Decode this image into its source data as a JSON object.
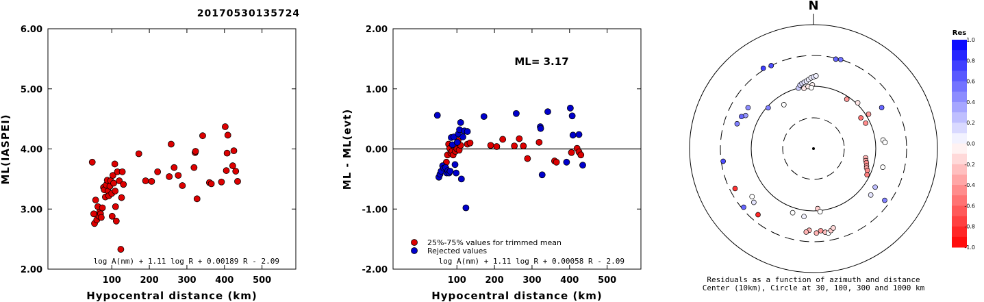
{
  "title": "20170530135724",
  "chart_data": [
    {
      "type": "scatter",
      "ylabel": "ML(IASPEI)",
      "xlabel": "Hypocentral distance (km)",
      "xlim": [
        -70,
        590
      ],
      "ylim": [
        2.0,
        6.0
      ],
      "x_ticks": [
        "100",
        "200",
        "300",
        "400",
        "500"
      ],
      "y_ticks": [
        "2.00",
        "3.00",
        "4.00",
        "5.00",
        "6.00"
      ],
      "formula": "log A(nm) + 1.11 log R + 0.00189 R - 2.09",
      "series": [
        {
          "color": "#dd0000",
          "points": [
            [
              48,
              3.78
            ],
            [
              52,
              2.92
            ],
            [
              54,
              2.76
            ],
            [
              57,
              3.15
            ],
            [
              60,
              2.82
            ],
            [
              63,
              3.04
            ],
            [
              66,
              2.88
            ],
            [
              68,
              2.95
            ],
            [
              70,
              2.92
            ],
            [
              72,
              2.86
            ],
            [
              75,
              3.02
            ],
            [
              78,
              3.36
            ],
            [
              80,
              3.32
            ],
            [
              83,
              3.2
            ],
            [
              85,
              3.4
            ],
            [
              88,
              3.48
            ],
            [
              90,
              3.3
            ],
            [
              92,
              3.22
            ],
            [
              95,
              3.38
            ],
            [
              97,
              3.47
            ],
            [
              100,
              3.26
            ],
            [
              101,
              2.88
            ],
            [
              103,
              3.56
            ],
            [
              105,
              3.43
            ],
            [
              108,
              3.75
            ],
            [
              109,
              3.3
            ],
            [
              110,
              3.04
            ],
            [
              112,
              2.8
            ],
            [
              115,
              3.62
            ],
            [
              120,
              3.47
            ],
            [
              124,
              2.33
            ],
            [
              126,
              3.19
            ],
            [
              128,
              3.62
            ],
            [
              131,
              3.41
            ],
            [
              172,
              3.92
            ],
            [
              190,
              3.47
            ],
            [
              206,
              3.46
            ],
            [
              222,
              3.62
            ],
            [
              253,
              3.54
            ],
            [
              258,
              4.08
            ],
            [
              266,
              3.69
            ],
            [
              277,
              3.56
            ],
            [
              288,
              3.39
            ],
            [
              319,
              3.69
            ],
            [
              322,
              3.94
            ],
            [
              323,
              3.96
            ],
            [
              327,
              3.17
            ],
            [
              342,
              4.22
            ],
            [
              360,
              3.44
            ],
            [
              365,
              3.42
            ],
            [
              392,
              3.45
            ],
            [
              402,
              4.37
            ],
            [
              405,
              3.64
            ],
            [
              407,
              3.93
            ],
            [
              409,
              4.23
            ],
            [
              422,
              3.72
            ],
            [
              425,
              3.97
            ],
            [
              430,
              3.63
            ],
            [
              435,
              3.46
            ]
          ]
        }
      ]
    },
    {
      "type": "scatter",
      "ylabel": "ML - ML(evt)",
      "xlabel": "Hypocentral distance (km)",
      "xlim": [
        -70,
        590
      ],
      "ylim": [
        -2.0,
        2.0
      ],
      "x_ticks": [
        "100",
        "200",
        "300",
        "400",
        "500"
      ],
      "y_ticks": [
        "-2.00",
        "-1.00",
        "0.00",
        "1.00",
        "2.00"
      ],
      "ml_label": "ML= 3.17",
      "formula": "log A(nm) + 1.11 log R + 0.00058 R - 2.09",
      "legend": [
        "25%-75% values for trimmed mean",
        "Rejected values"
      ],
      "series": [
        {
          "name": "25%-75% values for trimmed mean",
          "color": "#dd0000",
          "points": [
            [
              68,
              -0.31
            ],
            [
              72,
              -0.22
            ],
            [
              75,
              -0.1
            ],
            [
              78,
              0.08
            ],
            [
              81,
              0.01
            ],
            [
              84,
              -0.07
            ],
            [
              87,
              -0.04
            ],
            [
              90,
              -0.1
            ],
            [
              93,
              0.04
            ],
            [
              96,
              -0.04
            ],
            [
              100,
              0.0
            ],
            [
              103,
              0.14
            ],
            [
              106,
              -0.02
            ],
            [
              110,
              0.06
            ],
            [
              128,
              0.08
            ],
            [
              135,
              0.1
            ],
            [
              190,
              0.06
            ],
            [
              206,
              0.04
            ],
            [
              222,
              0.16
            ],
            [
              253,
              0.05
            ],
            [
              266,
              0.17
            ],
            [
              277,
              0.05
            ],
            [
              288,
              -0.16
            ],
            [
              319,
              0.11
            ],
            [
              360,
              -0.2
            ],
            [
              365,
              -0.22
            ],
            [
              405,
              -0.06
            ],
            [
              420,
              0.01
            ],
            [
              425,
              -0.05
            ],
            [
              430,
              -0.1
            ]
          ]
        },
        {
          "name": "Rejected values",
          "color": "#0000cc",
          "points": [
            [
              48,
              0.56
            ],
            [
              52,
              -0.47
            ],
            [
              55,
              -0.42
            ],
            [
              58,
              -0.37
            ],
            [
              62,
              -0.28
            ],
            [
              65,
              -0.32
            ],
            [
              70,
              -0.31
            ],
            [
              73,
              -0.4
            ],
            [
              76,
              -0.36
            ],
            [
              79,
              -0.4
            ],
            [
              82,
              -0.37
            ],
            [
              85,
              0.19
            ],
            [
              88,
              0.07
            ],
            [
              92,
              0.2
            ],
            [
              95,
              -0.26
            ],
            [
              98,
              -0.4
            ],
            [
              101,
              0.11
            ],
            [
              104,
              0.25
            ],
            [
              107,
              0.32
            ],
            [
              110,
              0.44
            ],
            [
              112,
              -0.5
            ],
            [
              116,
              0.2
            ],
            [
              120,
              0.3
            ],
            [
              124,
              -0.98
            ],
            [
              128,
              0.29
            ],
            [
              172,
              0.54
            ],
            [
              258,
              0.59
            ],
            [
              322,
              0.37
            ],
            [
              323,
              0.34
            ],
            [
              327,
              -0.43
            ],
            [
              342,
              0.62
            ],
            [
              392,
              -0.22
            ],
            [
              402,
              0.68
            ],
            [
              407,
              0.55
            ],
            [
              409,
              0.23
            ],
            [
              425,
              0.24
            ],
            [
              435,
              -0.27
            ]
          ]
        }
      ]
    }
  ],
  "polar": {
    "north_label": "N",
    "caption_line1": "Residuals as a function of azimuth and distance",
    "caption_line2": "Center (10km), Circle at 30, 100, 300 and 1000 km",
    "colorbar": {
      "title": "Res",
      "ticks": [
        "1.0",
        "0.8",
        "0.6",
        "0.4",
        "0.2",
        "0.0",
        "-0.2",
        "-0.4",
        "-0.6",
        "-0.8",
        "-1.0"
      ]
    },
    "stations": [
      {
        "az": 14,
        "dist": 290,
        "res": 0.6
      },
      {
        "az": 17,
        "dist": 300,
        "res": 0.55
      },
      {
        "az": -32,
        "dist": 320,
        "res": 0.75
      },
      {
        "az": -27,
        "dist": 300,
        "res": 0.7
      },
      {
        "az": -14,
        "dist": 100,
        "res": 0.2
      },
      {
        "az": -12,
        "dist": 110,
        "res": 0.18
      },
      {
        "az": -10,
        "dist": 115,
        "res": 0.12
      },
      {
        "az": -8,
        "dist": 118,
        "res": 0.1
      },
      {
        "az": -6,
        "dist": 122,
        "res": 0.08
      },
      {
        "az": -4,
        "dist": 128,
        "res": 0.06
      },
      {
        "az": -2,
        "dist": 135,
        "res": 0.05
      },
      {
        "az": 0,
        "dist": 140,
        "res": 0.1
      },
      {
        "az": 2,
        "dist": 145,
        "res": 0.05
      },
      {
        "az": -9,
        "dist": 95,
        "res": -0.1
      },
      {
        "az": -5,
        "dist": 100,
        "res": -0.08
      },
      {
        "az": -1,
        "dist": 105,
        "res": -0.05
      },
      {
        "az": -34,
        "dist": 70,
        "res": 0.0
      },
      {
        "az": -48,
        "dist": 95,
        "res": 0.5
      },
      {
        "az": -58,
        "dist": 170,
        "res": 0.45
      },
      {
        "az": -64,
        "dist": 160,
        "res": 0.4
      },
      {
        "az": -66,
        "dist": 180,
        "res": 0.6
      },
      {
        "az": -72,
        "dist": 190,
        "res": 0.5
      },
      {
        "az": -98,
        "dist": 280,
        "res": 0.7
      },
      {
        "az": -117,
        "dist": 250,
        "res": -0.8
      },
      {
        "az": -130,
        "dist": 280,
        "res": 0.6
      },
      {
        "az": -132,
        "dist": 190,
        "res": 0.1
      },
      {
        "az": -128,
        "dist": 175,
        "res": 0.0
      },
      {
        "az": -140,
        "dist": 235,
        "res": -0.85
      },
      {
        "az": -162,
        "dist": 120,
        "res": 0.0
      },
      {
        "az": -172,
        "dist": 125,
        "res": 0.05
      },
      {
        "az": -177,
        "dist": 200,
        "res": -0.3
      },
      {
        "az": -175,
        "dist": 215,
        "res": -0.3
      },
      {
        "az": 178,
        "dist": 220,
        "res": -0.3
      },
      {
        "az": 175,
        "dist": 205,
        "res": -0.4
      },
      {
        "az": 172,
        "dist": 220,
        "res": -0.25
      },
      {
        "az": 170,
        "dist": 230,
        "res": 0.0
      },
      {
        "az": 168,
        "dist": 215,
        "res": -0.2
      },
      {
        "az": 166,
        "dist": 200,
        "res": -0.15
      },
      {
        "az": -2,
        "dist": 95,
        "res": 0.0
      },
      {
        "az": 176,
        "dist": 92,
        "res": -0.2
      },
      {
        "az": 174,
        "dist": 104,
        "res": 0.0
      },
      {
        "az": 34,
        "dist": 90,
        "res": -0.4
      },
      {
        "az": 44,
        "dist": 105,
        "res": -0.1
      },
      {
        "az": 57,
        "dist": 80,
        "res": -0.55
      },
      {
        "az": 58,
        "dist": 110,
        "res": -0.4
      },
      {
        "az": 64,
        "dist": 85,
        "res": -0.45
      },
      {
        "az": 100,
        "dist": 70,
        "res": -0.3
      },
      {
        "az": 103,
        "dist": 72,
        "res": -0.35
      },
      {
        "az": 105,
        "dist": 75,
        "res": -0.45
      },
      {
        "az": 108,
        "dist": 78,
        "res": -0.4
      },
      {
        "az": 110,
        "dist": 80,
        "res": -0.35
      },
      {
        "az": 112,
        "dist": 85,
        "res": -0.45
      },
      {
        "az": 116,
        "dist": 90,
        "res": -0.5
      },
      {
        "az": 59,
        "dist": 185,
        "res": 0.6
      },
      {
        "az": 83,
        "dist": 132,
        "res": 0.0
      },
      {
        "az": 85,
        "dist": 140,
        "res": 0.0
      },
      {
        "az": 105,
        "dist": 140,
        "res": 0.0
      },
      {
        "az": 122,
        "dist": 145,
        "res": 0.25
      },
      {
        "az": 129,
        "dist": 150,
        "res": 0.1
      },
      {
        "az": 126,
        "dist": 250,
        "res": 0.5
      }
    ]
  }
}
